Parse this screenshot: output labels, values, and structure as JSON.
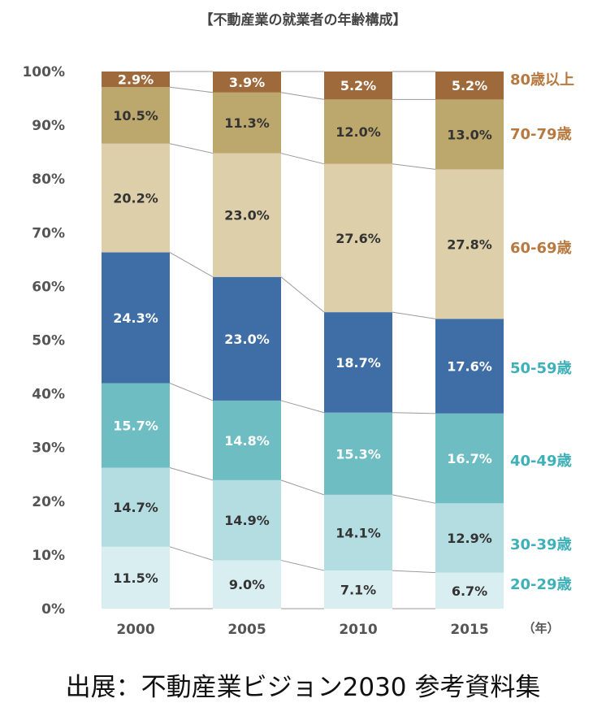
{
  "chart_data": {
    "type": "bar",
    "stacked": true,
    "title": "【不動産業の就業者の年齢構成】",
    "x_unit": "（年）",
    "categories": [
      "2000",
      "2005",
      "2010",
      "2015"
    ],
    "y_ticks": [
      "0%",
      "10%",
      "20%",
      "30%",
      "40%",
      "50%",
      "60%",
      "70%",
      "80%",
      "90%",
      "100%"
    ],
    "ylim": [
      0,
      100
    ],
    "series": [
      {
        "name": "20-29歳",
        "color": "#d9eef1",
        "label_color": "#3db0b8",
        "values": [
          11.5,
          9.0,
          7.1,
          6.7
        ],
        "labels": [
          "11.5%",
          "9.0%",
          "7.1%",
          "6.7%"
        ]
      },
      {
        "name": "30-39歳",
        "color": "#b4dde2",
        "label_color": "#3db0b8",
        "values": [
          14.7,
          14.9,
          14.1,
          12.9
        ],
        "labels": [
          "14.7%",
          "14.9%",
          "14.1%",
          "12.9%"
        ]
      },
      {
        "name": "40-49歳",
        "color": "#6dbdc3",
        "label_color": "#3db0b8",
        "values": [
          15.7,
          14.8,
          15.3,
          16.7
        ],
        "labels": [
          "15.7%",
          "14.8%",
          "15.3%",
          "16.7%"
        ]
      },
      {
        "name": "50-59歳",
        "color": "#3f6ea6",
        "label_color": "#3db0b8",
        "values": [
          24.3,
          23.0,
          18.7,
          17.6
        ],
        "labels": [
          "24.3%",
          "23.0%",
          "18.7%",
          "17.6%"
        ]
      },
      {
        "name": "60-69歳",
        "color": "#dccfa9",
        "label_color": "#b7793f",
        "values": [
          20.2,
          23.0,
          27.6,
          27.8
        ],
        "labels": [
          "20.2%",
          "23.0%",
          "27.6%",
          "27.8%"
        ]
      },
      {
        "name": "70-79歳",
        "color": "#bca76c",
        "label_color": "#b7793f",
        "values": [
          10.5,
          11.3,
          12.0,
          13.0
        ],
        "labels": [
          "10.5%",
          "11.3%",
          "12.0%",
          "13.0%"
        ]
      },
      {
        "name": "80歳以上",
        "color": "#9e6a3c",
        "label_color": "#b7793f",
        "values": [
          2.9,
          3.9,
          5.2,
          5.2
        ],
        "labels": [
          "2.9%",
          "3.9%",
          "5.2%",
          "5.2%"
        ]
      }
    ]
  },
  "source_text": "出展：不動産業ビジョン2030 参考資料集"
}
